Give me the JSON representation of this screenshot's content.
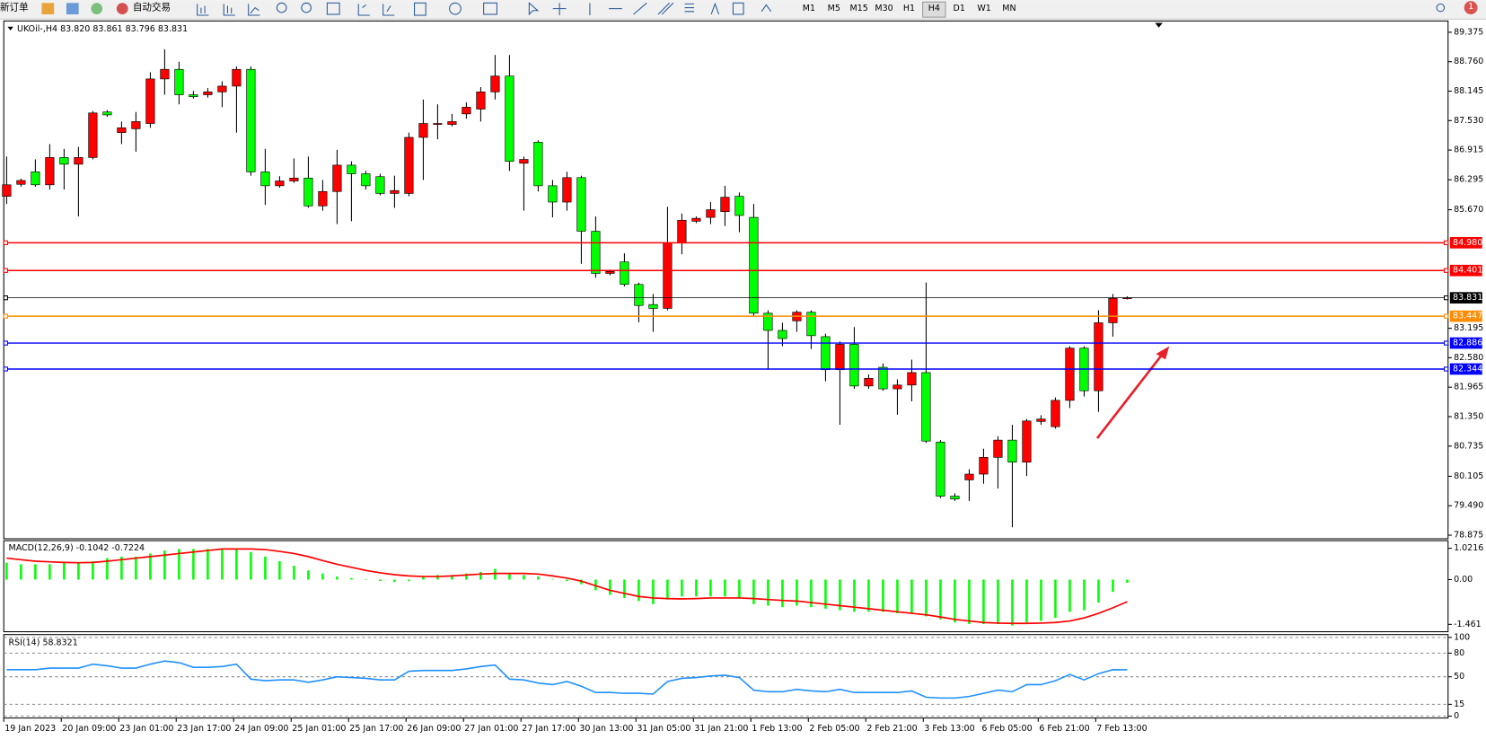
{
  "toolbar": {
    "new_order": "新订单",
    "auto_trade": "自动交易",
    "timeframes": [
      "M1",
      "M5",
      "M15",
      "M30",
      "H1",
      "H4",
      "D1",
      "W1",
      "MN"
    ],
    "active_timeframe": "H4",
    "badge": "1"
  },
  "chart_data": [
    {
      "type": "candlestick",
      "title": "UKOil-,H4",
      "quote": "83.820 83.861 83.796 83.831",
      "up_color": "#ff0000",
      "down_color": "#00ff00",
      "open": [
        85.95,
        86.2,
        86.46,
        86.19,
        86.76,
        86.62,
        86.76,
        87.71,
        87.28,
        87.36,
        87.47,
        88.4,
        88.6,
        88.07,
        88.07,
        88.13,
        88.25,
        88.6,
        86.46,
        86.17,
        86.27,
        86.33,
        85.75,
        86.05,
        86.6,
        86.42,
        86.36,
        86.01,
        86.01,
        87.18,
        87.45,
        87.45,
        87.67,
        87.77,
        88.13,
        88.46,
        86.64,
        87.08,
        86.17,
        85.83,
        86.34,
        85.22,
        84.34,
        84.58,
        84.11,
        83.69,
        83.61,
        84.98,
        85.43,
        85.51,
        85.63,
        85.95,
        85.51,
        83.51,
        83.15,
        83.35,
        83.53,
        83.02,
        82.33,
        82.86,
        81.99,
        82.38,
        81.93,
        82.01,
        82.27,
        80.82,
        79.69,
        80.03,
        80.15,
        80.5,
        80.86,
        80.4,
        81.25,
        81.14,
        81.69,
        82.78,
        81.89,
        83.31,
        83.82
      ],
      "high": [
        86.78,
        86.32,
        86.72,
        87.04,
        86.94,
        86.98,
        87.73,
        87.75,
        87.51,
        87.71,
        88.54,
        89.02,
        88.76,
        88.15,
        88.21,
        88.35,
        88.66,
        88.66,
        86.94,
        86.37,
        86.74,
        86.78,
        86.29,
        86.92,
        86.68,
        86.48,
        86.42,
        86.38,
        87.28,
        87.97,
        87.87,
        87.67,
        87.91,
        88.23,
        88.9,
        88.9,
        86.78,
        87.12,
        86.29,
        86.46,
        86.38,
        85.53,
        84.42,
        84.76,
        84.15,
        83.91,
        85.73,
        85.59,
        85.53,
        85.83,
        86.17,
        86.03,
        85.79,
        83.57,
        83.31,
        83.57,
        83.57,
        83.08,
        82.92,
        83.22,
        82.23,
        82.46,
        82.13,
        82.54,
        84.15,
        80.86,
        79.75,
        80.25,
        80.68,
        80.94,
        81.18,
        81.3,
        81.38,
        81.75,
        82.82,
        82.82,
        83.57,
        83.91,
        83.861
      ],
      "low": [
        85.79,
        86.15,
        86.15,
        86.09,
        86.09,
        85.53,
        86.72,
        87.61,
        87.04,
        86.88,
        87.38,
        88.07,
        87.87,
        87.99,
        88.01,
        87.81,
        87.28,
        86.38,
        85.77,
        86.13,
        86.23,
        85.71,
        85.65,
        85.37,
        85.43,
        86.09,
        85.97,
        85.71,
        85.95,
        86.29,
        87.14,
        87.41,
        87.57,
        87.51,
        87.97,
        86.48,
        85.65,
        86.05,
        85.51,
        85.65,
        84.54,
        84.25,
        84.3,
        84.07,
        83.32,
        83.12,
        83.57,
        84.74,
        85.39,
        85.37,
        85.33,
        85.2,
        83.45,
        82.33,
        82.82,
        83.12,
        82.76,
        82.09,
        81.18,
        81.93,
        81.93,
        81.89,
        81.39,
        81.67,
        80.8,
        79.65,
        79.59,
        79.59,
        79.95,
        79.85,
        79.04,
        80.11,
        81.18,
        81.1,
        81.53,
        81.77,
        81.45,
        83.02,
        83.796
      ],
      "close": [
        86.19,
        86.28,
        86.19,
        86.76,
        86.62,
        86.76,
        87.69,
        87.65,
        87.38,
        87.51,
        88.4,
        88.6,
        88.07,
        88.03,
        88.13,
        88.25,
        88.6,
        86.46,
        86.17,
        86.27,
        86.33,
        85.75,
        86.05,
        86.6,
        86.42,
        86.17,
        86.01,
        86.07,
        87.18,
        87.47,
        87.47,
        87.51,
        87.81,
        88.13,
        88.46,
        86.68,
        86.72,
        86.17,
        85.83,
        86.34,
        85.22,
        84.34,
        84.38,
        84.11,
        83.67,
        83.61,
        84.98,
        85.45,
        85.49,
        85.67,
        85.93,
        85.55,
        83.51,
        83.15,
        82.98,
        83.53,
        83.04,
        82.33,
        82.86,
        81.99,
        82.15,
        81.93,
        82.01,
        82.27,
        80.84,
        79.69,
        79.63,
        80.15,
        80.5,
        80.86,
        80.4,
        81.26,
        81.3,
        81.69,
        82.78,
        81.89,
        83.31,
        83.82,
        83.831
      ],
      "ylim": [
        78.82,
        89.61
      ],
      "yticks": [
        89.375,
        {
          "value": 88.76,
          "label": "88.760"
        },
        88.145,
        {
          "value": 87.53,
          "label": "87.530"
        },
        86.915,
        86.295,
        {
          "value": 85.67,
          "label": "85.670"
        },
        83.195,
        {
          "value": 82.58,
          "label": "82.580"
        },
        81.965,
        {
          "value": 81.35,
          "label": "81.350"
        },
        80.735,
        80.105,
        {
          "value": 79.49,
          "label": "79.490"
        },
        78.875
      ],
      "levels": [
        {
          "value": 84.98,
          "label": "84.980",
          "color": "#ff0000"
        },
        {
          "value": 84.401,
          "label": "84.401",
          "color": "#ff0000"
        },
        {
          "value": 83.831,
          "label": "83.831",
          "color": "#000000"
        },
        {
          "value": 83.447,
          "label": "83.447",
          "color": "#ff8c00"
        },
        {
          "value": 82.886,
          "label": "82.886",
          "color": "#0000ff"
        },
        {
          "value": 82.344,
          "label": "82.344",
          "color": "#0000ff"
        }
      ]
    },
    {
      "type": "macd",
      "title": "MACD(12,26,9) -0.1042 -0.7224",
      "series": [
        {
          "color": "#00ff00",
          "values": [
            0.55,
            0.5,
            0.5,
            0.5,
            0.55,
            0.55,
            0.6,
            0.7,
            0.75,
            0.75,
            0.85,
            0.95,
            1.0,
            1.0,
            1.0,
            0.98,
            0.98,
            0.9,
            0.75,
            0.6,
            0.45,
            0.3,
            0.2,
            0.1,
            0.05,
            0.0,
            -0.05,
            -0.08,
            -0.05,
            0.1,
            0.15,
            0.15,
            0.2,
            0.25,
            0.35,
            0.2,
            0.15,
            0.1,
            0.02,
            -0.05,
            -0.15,
            -0.35,
            -0.5,
            -0.6,
            -0.7,
            -0.8,
            -0.65,
            -0.55,
            -0.55,
            -0.55,
            -0.55,
            -0.6,
            -0.8,
            -0.85,
            -0.9,
            -0.85,
            -0.9,
            -0.95,
            -1.0,
            -1.05,
            -1.05,
            -1.05,
            -1.1,
            -1.1,
            -1.2,
            -1.3,
            -1.4,
            -1.45,
            -1.45,
            -1.45,
            -1.5,
            -1.4,
            -1.35,
            -1.25,
            -1.05,
            -1.0,
            -0.75,
            -0.4,
            -0.1042
          ]
        },
        {
          "color": "#ff0000",
          "values": [
            0.7,
            0.65,
            0.6,
            0.58,
            0.56,
            0.55,
            0.56,
            0.6,
            0.65,
            0.7,
            0.75,
            0.8,
            0.85,
            0.9,
            0.95,
            1.0,
            1.0,
            1.0,
            0.98,
            0.92,
            0.85,
            0.75,
            0.62,
            0.5,
            0.4,
            0.3,
            0.22,
            0.16,
            0.12,
            0.1,
            0.1,
            0.12,
            0.15,
            0.18,
            0.2,
            0.2,
            0.2,
            0.18,
            0.12,
            0.05,
            -0.05,
            -0.2,
            -0.35,
            -0.45,
            -0.55,
            -0.6,
            -0.62,
            -0.63,
            -0.62,
            -0.6,
            -0.6,
            -0.6,
            -0.62,
            -0.65,
            -0.68,
            -0.7,
            -0.75,
            -0.8,
            -0.85,
            -0.9,
            -0.95,
            -1.0,
            -1.05,
            -1.1,
            -1.15,
            -1.22,
            -1.3,
            -1.35,
            -1.4,
            -1.42,
            -1.43,
            -1.43,
            -1.42,
            -1.4,
            -1.35,
            -1.25,
            -1.1,
            -0.92,
            -0.7224
          ]
        }
      ],
      "ylim": [
        -1.67,
        1.27
      ],
      "yticks": [
        1.0216,
        {
          "value": 0,
          "label": "0.00"
        },
        -1.461
      ]
    },
    {
      "type": "rsi",
      "title": "RSI(14) 58.8321",
      "color": "#1e90ff",
      "values": [
        59,
        59,
        59,
        61,
        61,
        61,
        66,
        64,
        61,
        61,
        66,
        70,
        68,
        62,
        62,
        63,
        66,
        47,
        45,
        46,
        46,
        43,
        46,
        50,
        49,
        48,
        46,
        46,
        57,
        58,
        58,
        58,
        60,
        63,
        65,
        47,
        46,
        42,
        40,
        44,
        38,
        30,
        30,
        29,
        29,
        28,
        44,
        48,
        49,
        51,
        52,
        49,
        33,
        31,
        31,
        34,
        32,
        31,
        34,
        30,
        30,
        30,
        30,
        32,
        24,
        23,
        23,
        25,
        29,
        33,
        31,
        40,
        40,
        45,
        53,
        46,
        54,
        59,
        58.8321
      ],
      "ylim": [
        0,
        100
      ],
      "yticks": [
        100,
        80,
        50,
        15,
        0
      ],
      "x_labels": [
        "19 Jan 2023",
        "20 Jan 09:00",
        "23 Jan 01:00",
        "23 Jan 17:00",
        "24 Jan 09:00",
        "25 Jan 01:00",
        "25 Jan 17:00",
        "26 Jan 09:00",
        "27 Jan 01:00",
        "27 Jan 17:00",
        "30 Jan 13:00",
        "31 Jan 05:00",
        "31 Jan 21:00",
        "1 Feb 13:00",
        "2 Feb 05:00",
        "2 Feb 21:00",
        "3 Feb 13:00",
        "6 Feb 05:00",
        "6 Feb 21:00",
        "7 Feb 13:00"
      ]
    }
  ]
}
